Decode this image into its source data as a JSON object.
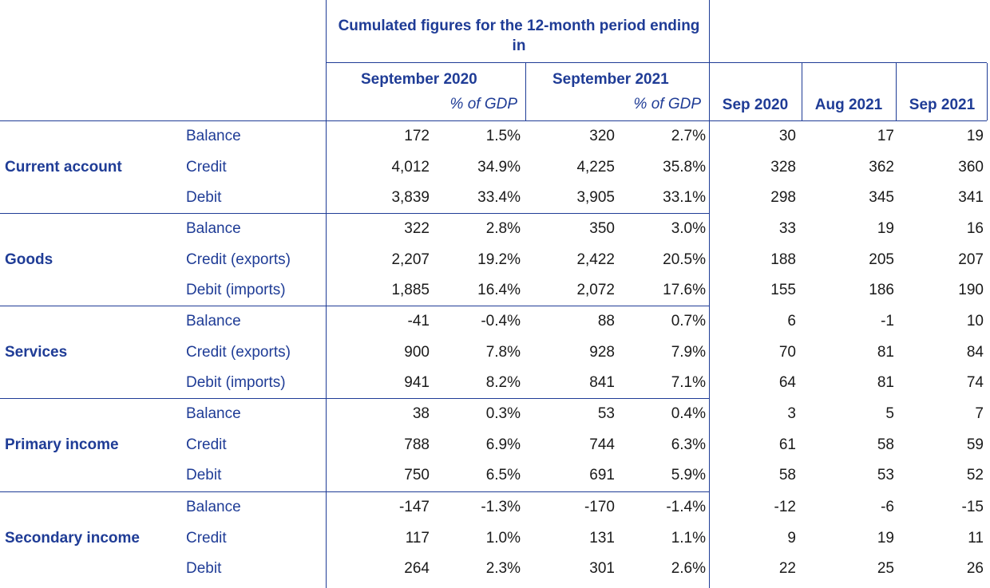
{
  "header": {
    "cumulated": "Cumulated figures for the 12-month period ending in",
    "col_sep2020": "September 2020",
    "col_sep2021": "September 2021",
    "pct_gdp_1": "% of GDP",
    "pct_gdp_2": "% of GDP",
    "m_sep2020": "Sep 2020",
    "m_aug2021": "Aug 2021",
    "m_sep2021": "Sep 2021"
  },
  "groups": [
    {
      "label": "Current account",
      "rows": [
        {
          "label": "Balance",
          "v": [
            "172",
            "1.5%",
            "320",
            "2.7%",
            "30",
            "17",
            "19"
          ]
        },
        {
          "label": "Credit",
          "v": [
            "4,012",
            "34.9%",
            "4,225",
            "35.8%",
            "328",
            "362",
            "360"
          ]
        },
        {
          "label": "Debit",
          "v": [
            "3,839",
            "33.4%",
            "3,905",
            "33.1%",
            "298",
            "345",
            "341"
          ]
        }
      ]
    },
    {
      "label": "Goods",
      "rows": [
        {
          "label": "Balance",
          "v": [
            "322",
            "2.8%",
            "350",
            "3.0%",
            "33",
            "19",
            "16"
          ]
        },
        {
          "label": "Credit (exports)",
          "v": [
            "2,207",
            "19.2%",
            "2,422",
            "20.5%",
            "188",
            "205",
            "207"
          ]
        },
        {
          "label": "Debit (imports)",
          "v": [
            "1,885",
            "16.4%",
            "2,072",
            "17.6%",
            "155",
            "186",
            "190"
          ]
        }
      ]
    },
    {
      "label": "Services",
      "rows": [
        {
          "label": "Balance",
          "v": [
            "-41",
            "-0.4%",
            "88",
            "0.7%",
            "6",
            "-1",
            "10"
          ]
        },
        {
          "label": "Credit (exports)",
          "v": [
            "900",
            "7.8%",
            "928",
            "7.9%",
            "70",
            "81",
            "84"
          ]
        },
        {
          "label": "Debit (imports)",
          "v": [
            "941",
            "8.2%",
            "841",
            "7.1%",
            "64",
            "81",
            "74"
          ]
        }
      ]
    },
    {
      "label": "Primary income",
      "rows": [
        {
          "label": "Balance",
          "v": [
            "38",
            "0.3%",
            "53",
            "0.4%",
            "3",
            "5",
            "7"
          ]
        },
        {
          "label": "Credit",
          "v": [
            "788",
            "6.9%",
            "744",
            "6.3%",
            "61",
            "58",
            "59"
          ]
        },
        {
          "label": "Debit",
          "v": [
            "750",
            "6.5%",
            "691",
            "5.9%",
            "58",
            "53",
            "52"
          ]
        }
      ]
    },
    {
      "label": "Secondary income",
      "rows": [
        {
          "label": "Balance",
          "v": [
            "-147",
            "-1.3%",
            "-170",
            "-1.4%",
            "-12",
            "-6",
            "-15"
          ]
        },
        {
          "label": "Credit",
          "v": [
            "117",
            "1.0%",
            "131",
            "1.1%",
            "9",
            "19",
            "11"
          ]
        },
        {
          "label": "Debit",
          "v": [
            "264",
            "2.3%",
            "301",
            "2.6%",
            "22",
            "25",
            "26"
          ]
        }
      ]
    }
  ]
}
